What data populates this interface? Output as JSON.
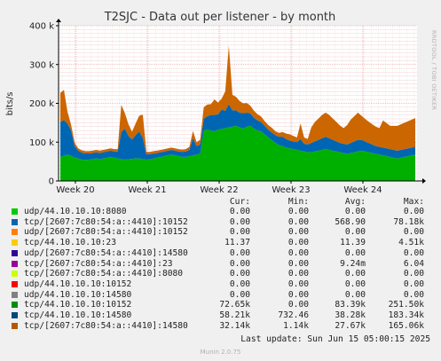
{
  "chart_data": {
    "type": "area",
    "title": "T2SJC - Data out per listener - by month",
    "ylabel": "bits/s",
    "ylim": [
      0,
      400000
    ],
    "yticks": [
      {
        "value": 0,
        "label": "0"
      },
      {
        "value": 100000,
        "label": "100 k"
      },
      {
        "value": 200000,
        "label": "200 k"
      },
      {
        "value": 300000,
        "label": "300 k"
      },
      {
        "value": 400000,
        "label": "400 k"
      }
    ],
    "xticks": [
      "Week 20",
      "Week 21",
      "Week 22",
      "Week 23",
      "Week 24"
    ],
    "grid": true,
    "stacked": true,
    "series": [
      {
        "name": "tcp/44.10.10.10:10152",
        "color": "#00b000",
        "values": [
          62000,
          65000,
          68000,
          65000,
          60000,
          58000,
          55000,
          54000,
          55000,
          56000,
          58000,
          56000,
          58000,
          60000,
          62000,
          60000,
          58000,
          56000,
          55000,
          56000,
          57000,
          58000,
          58000,
          56000,
          55000,
          56000,
          58000,
          60000,
          62000,
          64000,
          66000,
          68000,
          66000,
          64000,
          62000,
          62000,
          64000,
          66000,
          68000,
          70000,
          130000,
          132000,
          130000,
          128000,
          132000,
          134000,
          136000,
          138000,
          140000,
          142000,
          138000,
          135000,
          140000,
          142000,
          135000,
          130000,
          128000,
          120000,
          112000,
          105000,
          98000,
          92000,
          90000,
          86000,
          84000,
          82000,
          80000,
          78000,
          76000,
          74000,
          74000,
          76000,
          78000,
          80000,
          82000,
          80000,
          78000,
          76000,
          74000,
          72000,
          70000,
          72000,
          74000,
          76000,
          78000,
          76000,
          74000,
          72000,
          70000,
          68000,
          66000,
          64000,
          62000,
          60000,
          58000,
          60000,
          62000,
          64000,
          66000,
          68000
        ]
      },
      {
        "name": "tcp/44.10.10.10:14580",
        "color": "#0066b3",
        "values": [
          90000,
          92000,
          80000,
          65000,
          30000,
          20000,
          18000,
          17000,
          16000,
          16000,
          16000,
          16000,
          16000,
          16000,
          16000,
          16000,
          18000,
          70000,
          80000,
          60000,
          50000,
          60000,
          70000,
          55000,
          14000,
          13000,
          13000,
          12000,
          12000,
          12000,
          12000,
          12000,
          12000,
          12000,
          13000,
          14000,
          16000,
          45000,
          22000,
          24000,
          30000,
          35000,
          40000,
          42000,
          40000,
          50000,
          45000,
          60000,
          42000,
          40000,
          38000,
          40000,
          36000,
          32000,
          28000,
          26000,
          24000,
          22000,
          20000,
          20000,
          20000,
          22000,
          24000,
          22000,
          20000,
          20000,
          20000,
          30000,
          20000,
          20000,
          24000,
          26000,
          28000,
          30000,
          32000,
          30000,
          28000,
          26000,
          24000,
          24000,
          24000,
          26000,
          28000,
          30000,
          28000,
          26000,
          24000,
          22000,
          20000,
          20000,
          20000,
          20000,
          20000,
          20000,
          20000,
          20000,
          20000,
          20000,
          20000,
          20000
        ]
      },
      {
        "name": "tcp/[2607:7c80:54:a::4410]:14580",
        "color": "#cc6600",
        "values": [
          75000,
          78000,
          30000,
          15000,
          8000,
          6000,
          6000,
          6000,
          6000,
          6000,
          6000,
          6000,
          6000,
          6000,
          6000,
          6000,
          6000,
          70000,
          40000,
          30000,
          20000,
          30000,
          40000,
          60000,
          6000,
          6000,
          6000,
          6000,
          6000,
          6000,
          6000,
          6000,
          6000,
          6000,
          6000,
          6000,
          8000,
          18000,
          10000,
          12000,
          30000,
          30000,
          28000,
          40000,
          30000,
          28000,
          50000,
          150000,
          40000,
          35000,
          30000,
          25000,
          25000,
          20000,
          18000,
          16000,
          14000,
          12000,
          12000,
          12000,
          10000,
          10000,
          12000,
          14000,
          16000,
          14000,
          12000,
          40000,
          16000,
          14000,
          40000,
          50000,
          55000,
          60000,
          62000,
          60000,
          55000,
          50000,
          45000,
          40000,
          50000,
          60000,
          65000,
          70000,
          62000,
          58000,
          55000,
          52000,
          50000,
          48000,
          70000,
          65000,
          60000,
          62000,
          64000,
          66000,
          68000,
          70000,
          72000,
          74000
        ]
      }
    ],
    "legend": {
      "columns": [
        "Cur:",
        "Min:",
        "Avg:",
        "Max:"
      ],
      "rows": [
        {
          "name": "udp/44.10.10.10:8080",
          "color": "#00cc00",
          "cur": "0.00",
          "min": "0.00",
          "avg": "0.00",
          "max": "0.00"
        },
        {
          "name": "tcp/[2607:7c80:54:a::4410]:10152",
          "color": "#0066b3",
          "cur": "0.00",
          "min": "0.00",
          "avg": "568.90",
          "max": "78.18k"
        },
        {
          "name": "udp/[2607:7c80:54:a::4410]:10152",
          "color": "#ff8000",
          "cur": "0.00",
          "min": "0.00",
          "avg": "0.00",
          "max": "0.00"
        },
        {
          "name": "tcp/44.10.10.10:23",
          "color": "#ffcc00",
          "cur": "11.37",
          "min": "0.00",
          "avg": "11.39",
          "max": "4.51k"
        },
        {
          "name": "udp/[2607:7c80:54:a::4410]:14580",
          "color": "#330099",
          "cur": "0.00",
          "min": "0.00",
          "avg": "0.00",
          "max": "0.00"
        },
        {
          "name": "tcp/[2607:7c80:54:a::4410]:23",
          "color": "#990099",
          "cur": "0.00",
          "min": "0.00",
          "avg": "9.24m",
          "max": "6.04"
        },
        {
          "name": "tcp/[2607:7c80:54:a::4410]:8080",
          "color": "#ccff00",
          "cur": "0.00",
          "min": "0.00",
          "avg": "0.00",
          "max": "0.00"
        },
        {
          "name": "udp/44.10.10.10:10152",
          "color": "#ff0000",
          "cur": "0.00",
          "min": "0.00",
          "avg": "0.00",
          "max": "0.00"
        },
        {
          "name": "udp/44.10.10.10:14580",
          "color": "#808080",
          "cur": "0.00",
          "min": "0.00",
          "avg": "0.00",
          "max": "0.00"
        },
        {
          "name": "tcp/44.10.10.10:10152",
          "color": "#008f00",
          "cur": "72.65k",
          "min": "0.00",
          "avg": "83.39k",
          "max": "251.50k"
        },
        {
          "name": "tcp/44.10.10.10:14580",
          "color": "#00487d",
          "cur": "58.21k",
          "min": "732.46",
          "avg": "38.28k",
          "max": "183.34k"
        },
        {
          "name": "tcp/[2607:7c80:54:a::4410]:14580",
          "color": "#b35a00",
          "cur": "32.14k",
          "min": "1.14k",
          "avg": "27.67k",
          "max": "165.06k"
        }
      ]
    }
  },
  "side_label": "RRDTOOL / TOBI OETIKER",
  "footer": {
    "last_update": "Last update:  Sun Jun 15 05:00:15 2025",
    "version": "Munin 2.0.75"
  }
}
